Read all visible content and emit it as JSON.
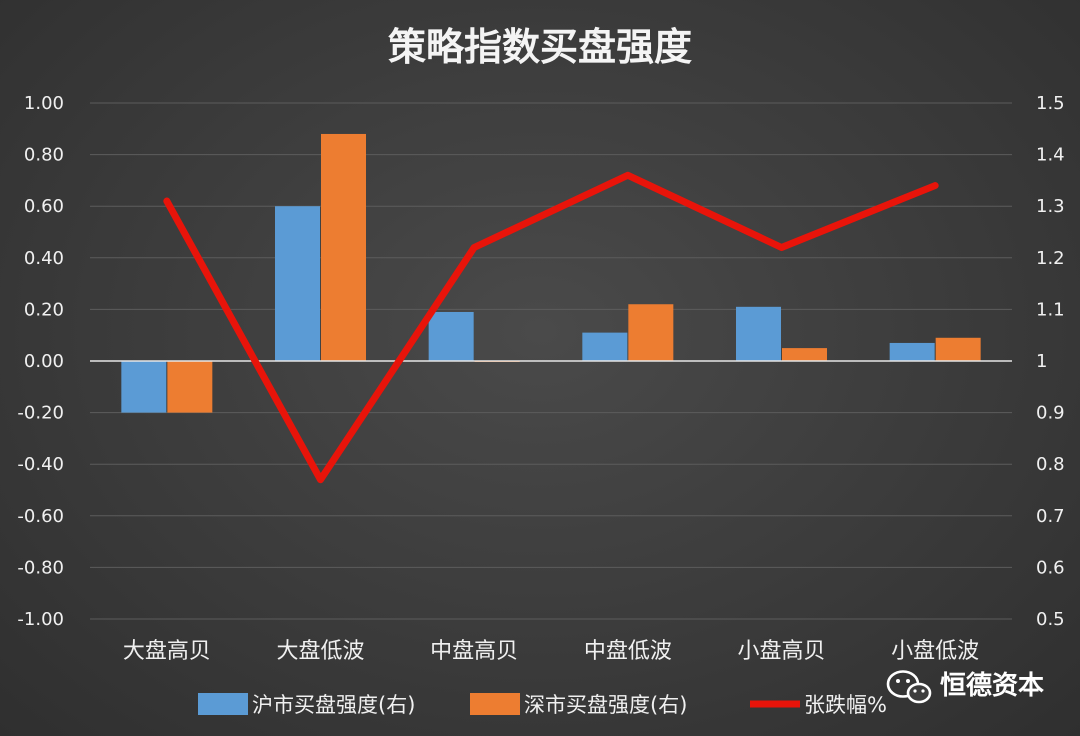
{
  "chart_data": {
    "type": "bar",
    "title": "策略指数买盘强度",
    "categories": [
      "大盘高贝",
      "大盘低波",
      "中盘高贝",
      "中盘低波",
      "小盘高贝",
      "小盘低波"
    ],
    "series": [
      {
        "name": "沪市买盘强度(右)",
        "type": "bar",
        "axis": "left",
        "color": "#5b9bd5",
        "values": [
          -0.2,
          0.6,
          0.19,
          0.11,
          0.21,
          0.07
        ]
      },
      {
        "name": "深市买盘强度(右)",
        "type": "bar",
        "axis": "left",
        "color": "#ed7d31",
        "values": [
          -0.2,
          0.88,
          0.0,
          0.22,
          0.05,
          0.09
        ]
      },
      {
        "name": "张跌幅%",
        "type": "line",
        "axis": "right",
        "color": "#e8140a",
        "values": [
          1.31,
          0.77,
          1.22,
          1.36,
          1.22,
          1.34
        ]
      }
    ],
    "left_axis": {
      "min": -1.0,
      "max": 1.0,
      "step": 0.2,
      "tick_labels": [
        "1.00",
        "0.80",
        "0.60",
        "0.40",
        "0.20",
        "0.00",
        "-0.20",
        "-0.40",
        "-0.60",
        "-0.80",
        "-1.00"
      ]
    },
    "right_axis": {
      "min": 0.5,
      "max": 1.5,
      "step": 0.1,
      "tick_labels": [
        "1.5",
        "1.4",
        "1.3",
        "1.2",
        "1.1",
        "1",
        "0.9",
        "0.8",
        "0.7",
        "0.6",
        "0.5"
      ]
    },
    "grid": true,
    "legend_position": "bottom"
  },
  "watermark": {
    "text": "恒德资本",
    "icon": "wechat-icon"
  }
}
